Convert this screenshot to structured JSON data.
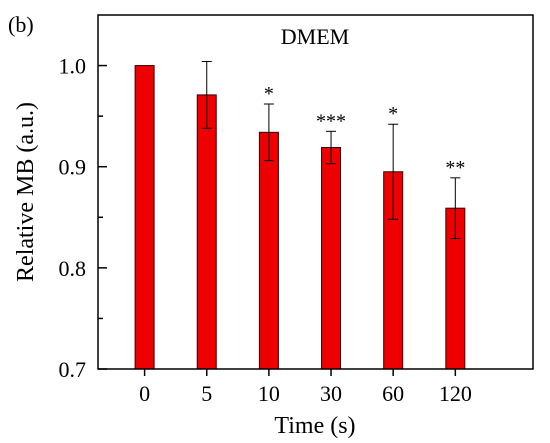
{
  "panel_label": "(b)",
  "chart_data": {
    "type": "bar",
    "title": "DMEM",
    "xlabel": "Time (s)",
    "ylabel": "Relative MB (a.u.)",
    "categories": [
      "0",
      "5",
      "10",
      "30",
      "60",
      "120"
    ],
    "values": [
      1.0,
      0.971,
      0.934,
      0.919,
      0.895,
      0.859
    ],
    "errors": [
      0.0,
      0.033,
      0.028,
      0.016,
      0.047,
      0.03
    ],
    "significance": [
      "",
      "",
      "*",
      "***",
      "*",
      "**"
    ],
    "ylim": [
      0.7,
      1.05
    ],
    "yticks": [
      0.7,
      0.8,
      0.9,
      1.0
    ],
    "ytick_labels": [
      "0.7",
      "0.8",
      "0.9",
      "1.0"
    ],
    "grid": false,
    "colors": {
      "bar": "#ee0000",
      "bar_edge": "#3a0000",
      "axis": "#000000"
    }
  }
}
